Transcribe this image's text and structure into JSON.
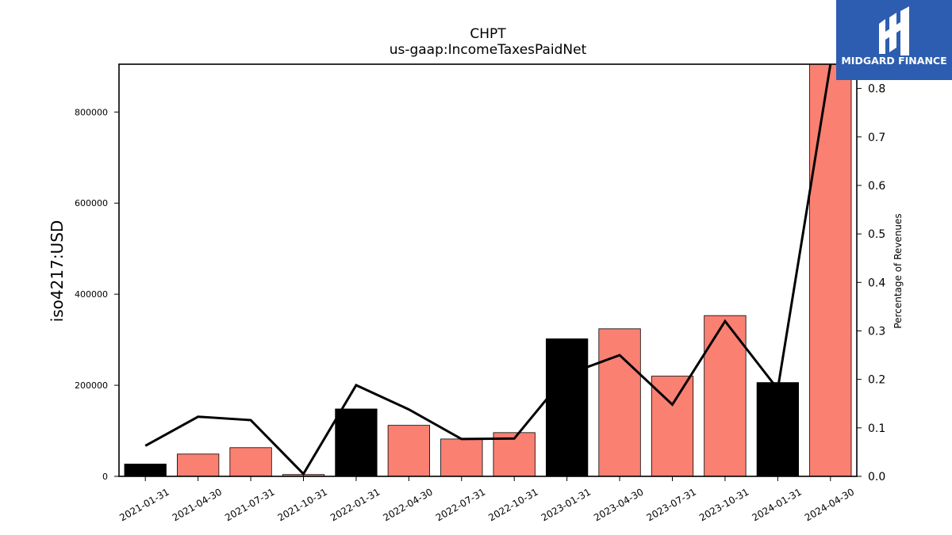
{
  "logo": {
    "text": "MIDGARD FINANCE",
    "bg_color": "#2d5db0"
  },
  "chart_data": {
    "type": "bar",
    "title": "CHPT",
    "subtitle": "us-gaap:IncomeTaxesPaidNet",
    "ylabel": "iso4217:USD",
    "y2label": "Percentage of Revenues",
    "categories": [
      "2021-01-31",
      "2021-04-30",
      "2021-07-31",
      "2021-10-31",
      "2022-01-31",
      "2022-04-30",
      "2022-07-31",
      "2022-10-31",
      "2023-01-31",
      "2023-04-30",
      "2023-07-31",
      "2023-10-31",
      "2024-01-31",
      "2024-04-30"
    ],
    "series": [
      {
        "values": [
          27000,
          49000,
          63000,
          4000,
          148000,
          112000,
          82000,
          96000,
          302000,
          324000,
          220000,
          353000,
          206000,
          905000
        ],
        "colors": [
          "#000000",
          "#fa8072",
          "#fa8072",
          "#fa8072",
          "#000000",
          "#fa8072",
          "#fa8072",
          "#fa8072",
          "#000000",
          "#fa8072",
          "#fa8072",
          "#fa8072",
          "#000000",
          "#fa8072"
        ]
      },
      {
        "axis": "right",
        "type": "line",
        "color": "#000000",
        "values": [
          0.063,
          0.123,
          0.116,
          0.005,
          0.188,
          0.138,
          0.077,
          0.078,
          0.21,
          0.25,
          0.148,
          0.32,
          0.18,
          0.85
        ]
      }
    ],
    "ylim": [
      0,
      905000
    ],
    "y2lim": [
      0,
      0.85
    ],
    "yticks": [
      0,
      200000,
      400000,
      600000,
      800000
    ],
    "ytick_labels": [
      "0",
      "200000",
      "400000",
      "600000",
      "800000"
    ],
    "y2ticks": [
      0.0,
      0.1,
      0.2,
      0.3,
      0.4,
      0.5,
      0.6,
      0.7,
      0.8
    ],
    "y2tick_labels": [
      "0.0",
      "0.1",
      "0.2",
      "0.3",
      "0.4",
      "0.5",
      "0.6",
      "0.7",
      "0.8"
    ],
    "grid": false
  }
}
